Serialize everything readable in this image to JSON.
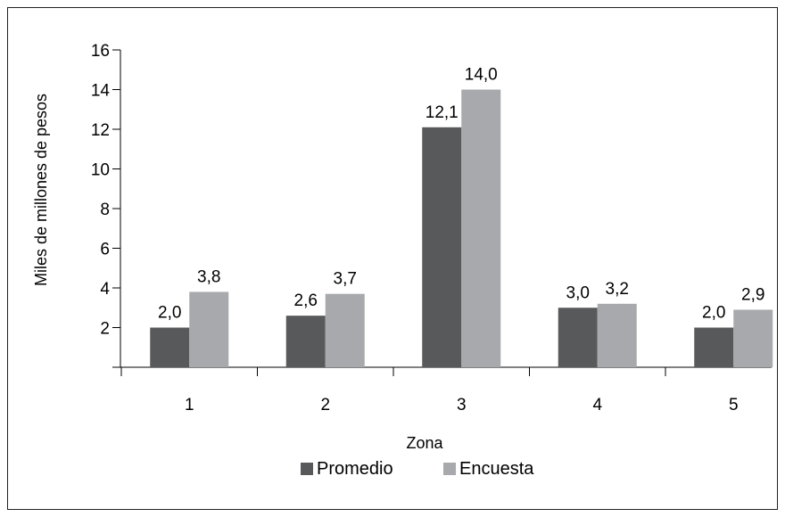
{
  "chart_data": {
    "type": "bar",
    "title": "",
    "xlabel": "Zona",
    "ylabel": "Miles de millones de pesos",
    "categories": [
      "1",
      "2",
      "3",
      "4",
      "5"
    ],
    "series": [
      {
        "name": "Promedio",
        "color": "#58595b",
        "values": [
          2.0,
          2.6,
          12.1,
          3.0,
          2.0
        ],
        "labels": [
          "2,0",
          "2,6",
          "12,1",
          "3,0",
          "2,0"
        ]
      },
      {
        "name": "Encuesta",
        "color": "#a7a9ac",
        "values": [
          3.8,
          3.7,
          14.0,
          3.2,
          2.9
        ],
        "labels": [
          "3,8",
          "3,7",
          "14,0",
          "3,2",
          "2,9"
        ]
      }
    ],
    "ylim": [
      0,
      16
    ],
    "yticks": [
      2,
      4,
      6,
      8,
      10,
      12,
      14,
      16
    ],
    "ytick_labels": [
      "2",
      "4",
      "6",
      "8",
      "10",
      "12",
      "14",
      "16"
    ],
    "grid": false,
    "legend_position": "bottom"
  }
}
